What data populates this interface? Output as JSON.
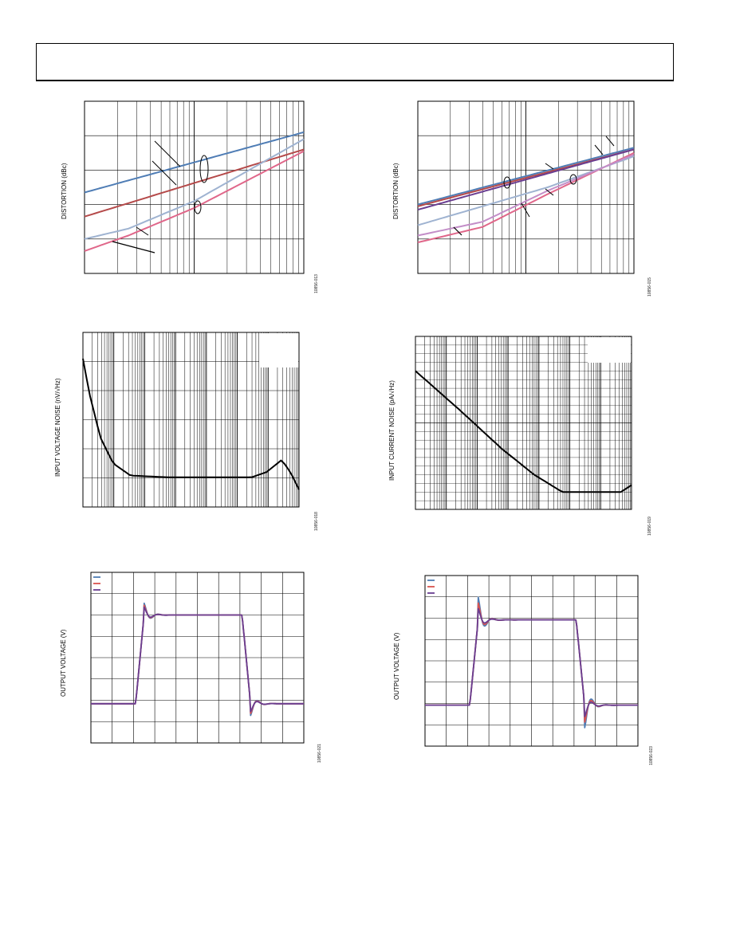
{
  "page": {
    "header_text": ""
  },
  "charts": [
    {
      "id": "dist1",
      "ylabel": "DISTORTION (dBc)",
      "code": "10856-013",
      "colors": [
        "#4f7db5",
        "#b54a4a",
        "#9fb3d1",
        "#e0678a"
      ]
    },
    {
      "id": "dist2",
      "ylabel": "DISTORTION (dBc)",
      "code": "10856-015",
      "colors": [
        "#4f7db5",
        "#b54a4a",
        "#6a3e91",
        "#e0678a",
        "#9fb3d1",
        "#c38ec8"
      ]
    },
    {
      "id": "vnoise",
      "ylabel": "INPUT VOLTAGE NOISE (nV/√Hz)",
      "code": "10856-018",
      "colors": [
        "#000000"
      ]
    },
    {
      "id": "inoise",
      "ylabel": "INPUT CURRENT NOISE (pA/√Hz)",
      "code": "10856-019",
      "colors": [
        "#000000"
      ]
    },
    {
      "id": "pulse1",
      "ylabel": "OUTPUT VOLTAGE (V)",
      "code": "10856-021",
      "colors": [
        "#4f7db5",
        "#d9534f",
        "#6a3e91"
      ]
    },
    {
      "id": "pulse2",
      "ylabel": "OUTPUT VOLTAGE (V)",
      "code": "10856-023",
      "colors": [
        "#4f7db5",
        "#d9534f",
        "#6a3e91"
      ]
    }
  ],
  "chart_data": [
    {
      "type": "line",
      "title": "",
      "ylabel": "DISTORTION (dBc)",
      "xscale": "log",
      "grid": true,
      "note": "axis tick labels not legible",
      "series": [
        {
          "values_norm": [
            [
              0,
              0.47
            ],
            [
              1,
              0.82
            ]
          ]
        },
        {
          "values_norm": [
            [
              0,
              0.33
            ],
            [
              1,
              0.72
            ]
          ]
        },
        {
          "values_norm": [
            [
              0,
              0.2
            ],
            [
              0.2,
              0.26
            ],
            [
              0.5,
              0.42
            ],
            [
              1,
              0.78
            ]
          ]
        },
        {
          "values_norm": [
            [
              0,
              0.13
            ],
            [
              0.2,
              0.22
            ],
            [
              0.5,
              0.38
            ],
            [
              1,
              0.71
            ]
          ]
        }
      ]
    },
    {
      "type": "line",
      "title": "",
      "ylabel": "DISTORTION (dBc)",
      "xscale": "log",
      "grid": true,
      "series": [
        {
          "values_norm": [
            [
              0,
              0.4
            ],
            [
              1,
              0.73
            ]
          ]
        },
        {
          "values_norm": [
            [
              0,
              0.39
            ],
            [
              1,
              0.72
            ]
          ]
        },
        {
          "values_norm": [
            [
              0,
              0.37
            ],
            [
              1,
              0.72
            ]
          ]
        },
        {
          "values_norm": [
            [
              0,
              0.18
            ],
            [
              0.3,
              0.27
            ],
            [
              0.6,
              0.46
            ],
            [
              1,
              0.7
            ]
          ]
        },
        {
          "values_norm": [
            [
              0,
              0.28
            ],
            [
              0.6,
              0.5
            ],
            [
              1,
              0.68
            ]
          ]
        },
        {
          "values_norm": [
            [
              0,
              0.22
            ],
            [
              0.3,
              0.3
            ],
            [
              0.6,
              0.48
            ],
            [
              1,
              0.69
            ]
          ]
        }
      ]
    },
    {
      "type": "line",
      "title": "",
      "ylabel": "INPUT VOLTAGE NOISE (nV/√Hz)",
      "xscale": "log",
      "grid": true,
      "series": [
        {
          "values_norm": [
            [
              0,
              0.85
            ],
            [
              0.03,
              0.65
            ],
            [
              0.08,
              0.4
            ],
            [
              0.14,
              0.25
            ],
            [
              0.22,
              0.18
            ],
            [
              0.4,
              0.17
            ],
            [
              0.78,
              0.17
            ],
            [
              0.85,
              0.2
            ],
            [
              0.92,
              0.27
            ],
            [
              0.96,
              0.2
            ],
            [
              1,
              0.1
            ]
          ]
        }
      ]
    },
    {
      "type": "line",
      "title": "",
      "ylabel": "INPUT CURRENT NOISE (pA/√Hz)",
      "xscale": "log",
      "grid": true,
      "series": [
        {
          "values_norm": [
            [
              0,
              0.8
            ],
            [
              0.2,
              0.58
            ],
            [
              0.4,
              0.35
            ],
            [
              0.55,
              0.2
            ],
            [
              0.68,
              0.1
            ],
            [
              0.8,
              0.1
            ],
            [
              0.95,
              0.1
            ],
            [
              1,
              0.14
            ]
          ]
        }
      ]
    },
    {
      "type": "line",
      "title": "",
      "ylabel": "OUTPUT VOLTAGE (V)",
      "grid": true,
      "series": [
        {
          "values_norm": "pulse",
          "overshoot": 0.06
        },
        {
          "values_norm": "pulse",
          "overshoot": 0.05
        },
        {
          "values_norm": "pulse",
          "overshoot": 0.04
        }
      ]
    },
    {
      "type": "line",
      "title": "",
      "ylabel": "OUTPUT VOLTAGE (V)",
      "grid": true,
      "series": [
        {
          "values_norm": "pulse",
          "overshoot": 0.12
        },
        {
          "values_norm": "pulse",
          "overshoot": 0.09
        },
        {
          "values_norm": "pulse",
          "overshoot": 0.06
        }
      ]
    }
  ]
}
